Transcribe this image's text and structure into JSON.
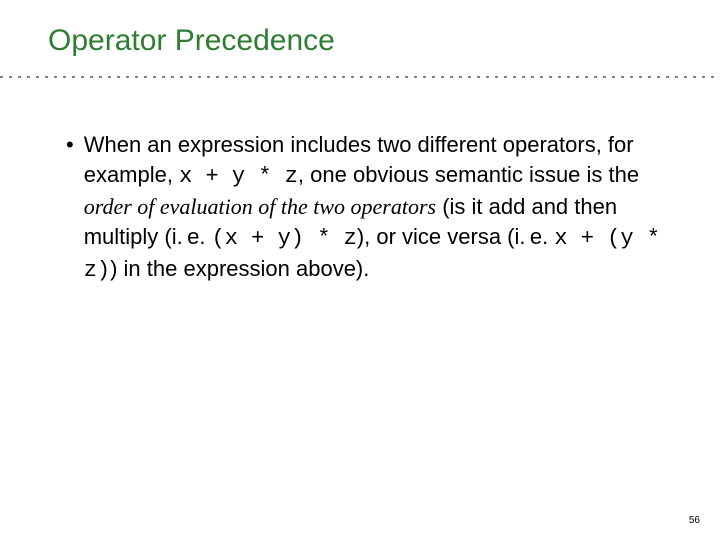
{
  "slide": {
    "title": "Operator Precedence",
    "title_color": "#2e7d32",
    "divider_color": "#808080",
    "bullet_marker": "•",
    "body_segments": [
      {
        "kind": "plain",
        "text": "When an expression includes two different operators, for example, "
      },
      {
        "kind": "code",
        "text": "x + y * z"
      },
      {
        "kind": "plain",
        "text": ", one obvious semantic issue is the "
      },
      {
        "kind": "italic",
        "text": "order of evaluation of the two operators"
      },
      {
        "kind": "plain",
        "text": " (is it add and then multiply (i.&#8201;e. "
      },
      {
        "kind": "code",
        "text": "(x + y) * z"
      },
      {
        "kind": "plain",
        "text": "), or vice versa (i.&#8201;e. "
      },
      {
        "kind": "code",
        "text": "x + (y * z)"
      },
      {
        "kind": "plain",
        "text": ") in the expression above)."
      }
    ],
    "page_number": "56",
    "body_fontsize": 22,
    "title_fontsize": 30,
    "background_color": "#ffffff"
  }
}
